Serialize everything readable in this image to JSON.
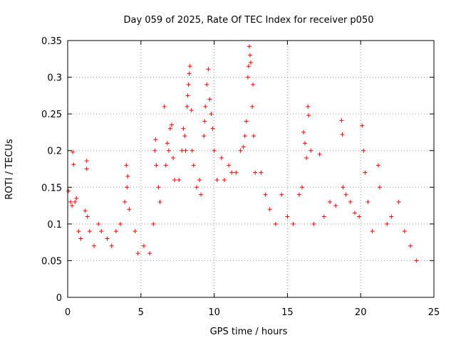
{
  "chart_data": {
    "type": "scatter",
    "title": "Day 059 of 2025, Rate Of TEC Index for receiver p050",
    "xlabel": "GPS time / hours",
    "ylabel": "ROTI / TECUs",
    "xlim": [
      0,
      25
    ],
    "ylim": [
      0,
      0.35
    ],
    "x_ticks": [
      0,
      5,
      10,
      15,
      20,
      25
    ],
    "x_tick_labels": [
      "0",
      "5",
      "10",
      "15",
      "20",
      "25"
    ],
    "y_ticks": [
      0,
      0.05,
      0.1,
      0.15,
      0.2,
      0.25,
      0.3,
      0.35
    ],
    "y_tick_labels": [
      "0",
      "0.05",
      "0.1",
      "0.15",
      "0.2",
      "0.25",
      "0.3",
      "0.35"
    ],
    "grid": true,
    "marker": "+",
    "series": [
      {
        "color": "#ff0000",
        "points": [
          [
            0.05,
            0.145
          ],
          [
            0.2,
            0.13
          ],
          [
            0.3,
            0.125
          ],
          [
            0.35,
            0.198
          ],
          [
            0.4,
            0.181
          ],
          [
            0.5,
            0.13
          ],
          [
            0.6,
            0.135
          ],
          [
            0.75,
            0.09
          ],
          [
            0.9,
            0.08
          ],
          [
            1.3,
            0.186
          ],
          [
            1.3,
            0.175
          ],
          [
            1.2,
            0.118
          ],
          [
            1.35,
            0.11
          ],
          [
            1.5,
            0.09
          ],
          [
            1.8,
            0.07
          ],
          [
            2.1,
            0.1
          ],
          [
            2.3,
            0.09
          ],
          [
            2.7,
            0.08
          ],
          [
            3.0,
            0.07
          ],
          [
            3.3,
            0.09
          ],
          [
            3.6,
            0.1
          ],
          [
            3.9,
            0.13
          ],
          [
            4.0,
            0.18
          ],
          [
            4.05,
            0.15
          ],
          [
            4.1,
            0.165
          ],
          [
            4.2,
            0.12
          ],
          [
            4.6,
            0.09
          ],
          [
            4.8,
            0.06
          ],
          [
            5.2,
            0.07
          ],
          [
            5.6,
            0.06
          ],
          [
            5.85,
            0.1
          ],
          [
            5.95,
            0.2
          ],
          [
            6.0,
            0.215
          ],
          [
            6.05,
            0.18
          ],
          [
            6.2,
            0.15
          ],
          [
            6.3,
            0.13
          ],
          [
            6.6,
            0.26
          ],
          [
            6.7,
            0.18
          ],
          [
            6.8,
            0.21
          ],
          [
            6.9,
            0.2
          ],
          [
            7.0,
            0.23
          ],
          [
            7.1,
            0.235
          ],
          [
            7.2,
            0.19
          ],
          [
            7.3,
            0.16
          ],
          [
            7.6,
            0.16
          ],
          [
            7.8,
            0.2
          ],
          [
            7.9,
            0.23
          ],
          [
            8.0,
            0.22
          ],
          [
            8.05,
            0.2
          ],
          [
            8.15,
            0.26
          ],
          [
            8.2,
            0.275
          ],
          [
            8.25,
            0.29
          ],
          [
            8.3,
            0.305
          ],
          [
            8.35,
            0.315
          ],
          [
            8.45,
            0.255
          ],
          [
            8.5,
            0.2
          ],
          [
            8.6,
            0.18
          ],
          [
            8.8,
            0.15
          ],
          [
            9.0,
            0.16
          ],
          [
            9.1,
            0.14
          ],
          [
            9.3,
            0.22
          ],
          [
            9.35,
            0.24
          ],
          [
            9.4,
            0.26
          ],
          [
            9.5,
            0.29
          ],
          [
            9.6,
            0.311
          ],
          [
            9.7,
            0.27
          ],
          [
            9.8,
            0.25
          ],
          [
            9.9,
            0.23
          ],
          [
            10.0,
            0.2
          ],
          [
            10.2,
            0.16
          ],
          [
            10.5,
            0.19
          ],
          [
            10.7,
            0.16
          ],
          [
            11.0,
            0.18
          ],
          [
            11.2,
            0.17
          ],
          [
            11.5,
            0.17
          ],
          [
            11.8,
            0.2
          ],
          [
            12.0,
            0.205
          ],
          [
            12.1,
            0.22
          ],
          [
            12.2,
            0.24
          ],
          [
            12.3,
            0.3
          ],
          [
            12.35,
            0.315
          ],
          [
            12.4,
            0.342
          ],
          [
            12.45,
            0.33
          ],
          [
            12.5,
            0.32
          ],
          [
            12.6,
            0.26
          ],
          [
            12.65,
            0.29
          ],
          [
            12.7,
            0.22
          ],
          [
            12.8,
            0.17
          ],
          [
            13.2,
            0.17
          ],
          [
            13.5,
            0.14
          ],
          [
            13.8,
            0.12
          ],
          [
            14.2,
            0.1
          ],
          [
            14.6,
            0.14
          ],
          [
            15.0,
            0.11
          ],
          [
            15.4,
            0.1
          ],
          [
            15.8,
            0.14
          ],
          [
            16.0,
            0.15
          ],
          [
            16.1,
            0.225
          ],
          [
            16.2,
            0.21
          ],
          [
            16.3,
            0.19
          ],
          [
            16.4,
            0.26
          ],
          [
            16.45,
            0.248
          ],
          [
            16.6,
            0.2
          ],
          [
            16.8,
            0.1
          ],
          [
            17.2,
            0.195
          ],
          [
            17.5,
            0.11
          ],
          [
            17.9,
            0.13
          ],
          [
            18.3,
            0.125
          ],
          [
            18.7,
            0.241
          ],
          [
            18.75,
            0.222
          ],
          [
            18.8,
            0.15
          ],
          [
            19.0,
            0.14
          ],
          [
            19.3,
            0.13
          ],
          [
            19.6,
            0.115
          ],
          [
            19.9,
            0.11
          ],
          [
            20.1,
            0.234
          ],
          [
            20.2,
            0.2
          ],
          [
            20.3,
            0.17
          ],
          [
            20.5,
            0.13
          ],
          [
            20.8,
            0.09
          ],
          [
            21.2,
            0.18
          ],
          [
            21.3,
            0.15
          ],
          [
            21.8,
            0.1
          ],
          [
            22.1,
            0.11
          ],
          [
            22.6,
            0.13
          ],
          [
            23.0,
            0.09
          ],
          [
            23.4,
            0.07
          ],
          [
            23.8,
            0.05
          ]
        ]
      }
    ]
  }
}
